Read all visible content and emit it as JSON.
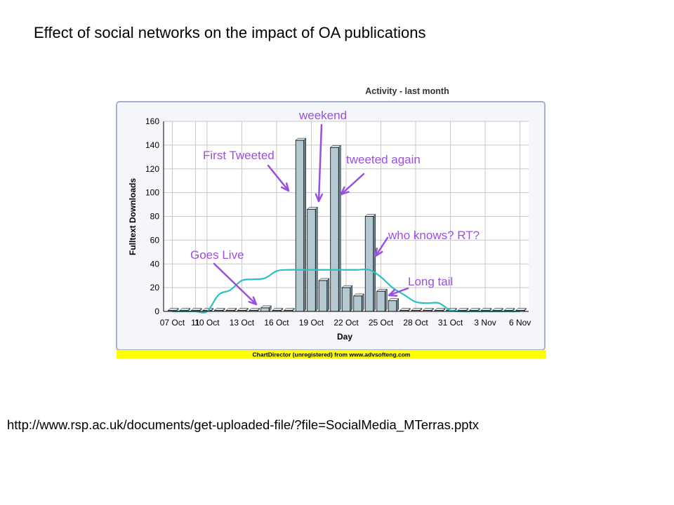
{
  "slide": {
    "title": "Effect of social networks on the impact of OA publications",
    "source_url": "http://www.rsp.ac.uk/documents/get-uploaded-file/?file=SocialMedia_MTerras.pptx"
  },
  "colors": {
    "bar_fill": "#b4c8d2",
    "bar_stroke": "#000000",
    "trend_line": "#2ec0c0",
    "annotation": "#9b4fe0",
    "footer_band": "#ffff00",
    "frame": "#a6b0c8",
    "plot_bg": "#ffffff",
    "grid": "#c8c8c8"
  },
  "chart_data": {
    "type": "bar",
    "title": "Activity - last month",
    "xlabel": "Day",
    "ylabel": "Fulltext Downloads",
    "ylim": [
      0,
      160
    ],
    "yticks": [
      0,
      20,
      40,
      60,
      80,
      100,
      120,
      140,
      160
    ],
    "xtick_labels": [
      "07 Oct",
      "11",
      "10 Oct",
      "13 Oct",
      "16 Oct",
      "19 Oct",
      "22 Oct",
      "25 Oct",
      "28 Oct",
      "31 Oct",
      "3 Nov",
      "6 Nov"
    ],
    "categories": [
      "07 Oct",
      "08 Oct",
      "09 Oct",
      "10 Oct",
      "11 Oct",
      "12 Oct",
      "13 Oct",
      "14 Oct",
      "15 Oct",
      "16 Oct",
      "17 Oct",
      "18 Oct",
      "19 Oct",
      "20 Oct",
      "21 Oct",
      "22 Oct",
      "23 Oct",
      "24 Oct",
      "25 Oct",
      "26 Oct",
      "27 Oct",
      "28 Oct",
      "29 Oct",
      "30 Oct",
      "31 Oct",
      "01 Nov",
      "02 Nov",
      "03 Nov",
      "04 Nov",
      "05 Nov",
      "06 Nov"
    ],
    "series": [
      {
        "type": "bar",
        "values": [
          0,
          0,
          0,
          0,
          0,
          0,
          0,
          0,
          3,
          0,
          0,
          144,
          86,
          26,
          138,
          20,
          13,
          80,
          17,
          9,
          0,
          0,
          0,
          0,
          0,
          0,
          0,
          0,
          0,
          0,
          0
        ]
      },
      {
        "type": "line",
        "values": [
          0,
          0,
          0,
          0,
          14,
          18,
          26,
          27,
          28,
          34,
          35,
          35,
          35,
          35,
          35,
          35,
          35,
          35,
          29,
          20,
          14,
          8,
          7,
          7,
          1,
          0,
          0,
          0,
          0,
          0,
          0
        ]
      }
    ],
    "annotations": [
      "weekend",
      "First Tweeted",
      "tweeted again",
      "who knows? RT?",
      "Goes Live",
      "Long tail"
    ],
    "footer": "ChartDirector (unregistered) from www.advsofteng.com",
    "grid": true,
    "legend": "none"
  }
}
